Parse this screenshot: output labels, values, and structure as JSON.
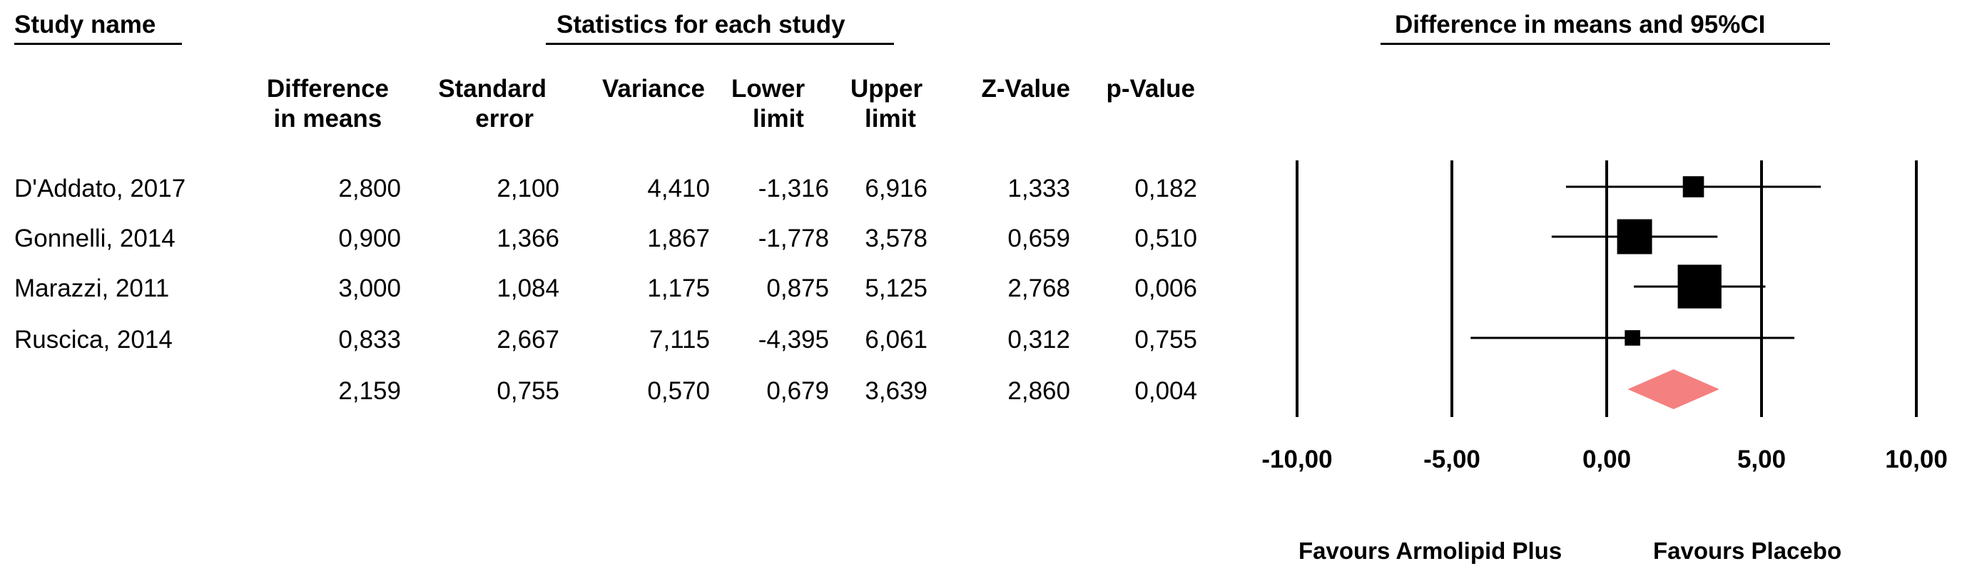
{
  "headers": {
    "study_name": "Study name",
    "statistics": "Statistics for each study",
    "plot_title": "Difference in means and 95%CI"
  },
  "columns": [
    {
      "line1": "Difference",
      "line2": "in means"
    },
    {
      "line1": "Standard",
      "line2": "error"
    },
    {
      "line1": "",
      "line2": "Variance"
    },
    {
      "line1": "Lower",
      "line2": "limit"
    },
    {
      "line1": "Upper",
      "line2": "limit"
    },
    {
      "line1": "",
      "line2": "Z-Value"
    },
    {
      "line1": "",
      "line2": "p-Value"
    }
  ],
  "rows": [
    {
      "study": "D'Addato, 2017",
      "values": [
        "2,800",
        "2,100",
        "4,410",
        "-1,316",
        "6,916",
        "1,333",
        "0,182"
      ]
    },
    {
      "study": "Gonnelli, 2014",
      "values": [
        "0,900",
        "1,366",
        "1,867",
        "-1,778",
        "3,578",
        "0,659",
        "0,510"
      ]
    },
    {
      "study": "Marazzi, 2011",
      "values": [
        "3,000",
        "1,084",
        "1,175",
        "0,875",
        "5,125",
        "2,768",
        "0,006"
      ]
    },
    {
      "study": "Ruscica, 2014",
      "values": [
        "0,833",
        "2,667",
        "7,115",
        "-4,395",
        "6,061",
        "0,312",
        "0,755"
      ]
    },
    {
      "study": "",
      "values": [
        "2,159",
        "0,755",
        "0,570",
        "0,679",
        "3,639",
        "2,860",
        "0,004"
      ]
    }
  ],
  "chart_data": {
    "type": "forest",
    "title": "Difference in means and 95%CI",
    "xlim": [
      -10,
      10
    ],
    "x_ticks": [
      -10,
      -5,
      0,
      5,
      10
    ],
    "x_tick_labels": [
      "-10,00",
      "-5,00",
      "0,00",
      "5,00",
      "10,00"
    ],
    "studies": [
      {
        "name": "D'Addato, 2017",
        "estimate": 2.8,
        "lower": -1.316,
        "upper": 6.916,
        "weight": 0.2
      },
      {
        "name": "Gonnelli, 2014",
        "estimate": 0.9,
        "lower": -1.778,
        "upper": 3.578,
        "weight": 0.42
      },
      {
        "name": "Marazzi, 2011",
        "estimate": 3.0,
        "lower": 0.875,
        "upper": 5.125,
        "weight": 0.56
      },
      {
        "name": "Ruscica, 2014",
        "estimate": 0.833,
        "lower": -4.395,
        "upper": 6.061,
        "weight": 0.11
      }
    ],
    "summary": {
      "estimate": 2.159,
      "lower": 0.679,
      "upper": 3.639
    },
    "summary_color": "#f58080",
    "favours_left": "Favours Armolipid Plus",
    "favours_right": "Favours Placebo"
  }
}
